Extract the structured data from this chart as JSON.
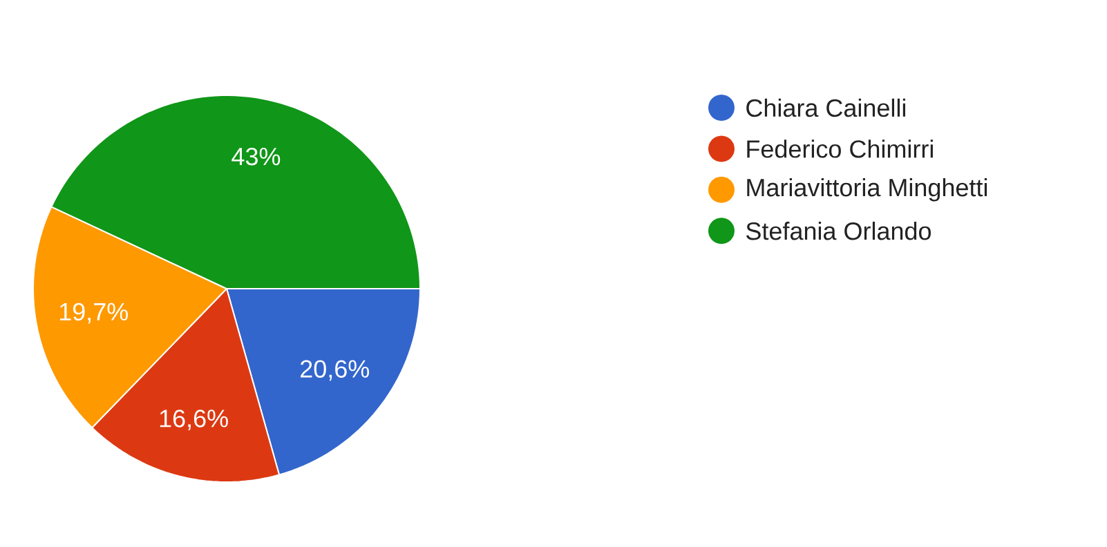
{
  "chart_data": {
    "type": "pie",
    "categories": [
      "Chiara Cainelli",
      "Federico Chimirri",
      "Mariavittoria Minghetti",
      "Stefania Orlando"
    ],
    "values": [
      20.6,
      16.6,
      19.7,
      43
    ],
    "value_labels": [
      "20,6%",
      "16,6%",
      "19,7%",
      "43%"
    ],
    "colors": [
      "#3366cc",
      "#dc3912",
      "#ff9900",
      "#109618"
    ],
    "legend": "right"
  }
}
